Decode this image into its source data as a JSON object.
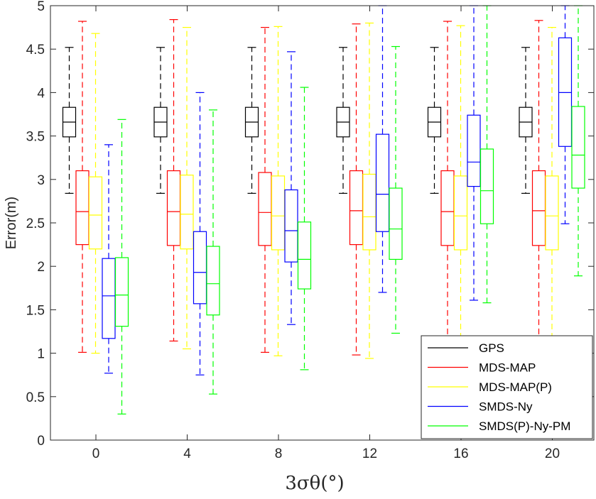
{
  "chart_data": {
    "type": "box",
    "xlabel": "3σθ(°)",
    "ylabel": "Error(m)",
    "ylim": [
      0,
      5
    ],
    "yticks": [
      0,
      0.5,
      1,
      1.5,
      2,
      2.5,
      3,
      3.5,
      4,
      4.5,
      5
    ],
    "ytick_labels": [
      "0",
      "0.5",
      "1",
      "1.5",
      "2",
      "2.5",
      "3",
      "3.5",
      "4",
      "4.5",
      "5"
    ],
    "categories": [
      "0",
      "4",
      "8",
      "12",
      "16",
      "20"
    ],
    "grid": false,
    "legend_position": "bottom-right",
    "series": [
      {
        "name": "GPS",
        "color": "#000000",
        "boxes": [
          {
            "whisker_low": 2.84,
            "q1": 3.49,
            "median": 3.66,
            "q3": 3.83,
            "whisker_high": 4.52
          },
          {
            "whisker_low": 2.84,
            "q1": 3.49,
            "median": 3.66,
            "q3": 3.83,
            "whisker_high": 4.52
          },
          {
            "whisker_low": 2.84,
            "q1": 3.49,
            "median": 3.66,
            "q3": 3.83,
            "whisker_high": 4.52
          },
          {
            "whisker_low": 2.84,
            "q1": 3.49,
            "median": 3.66,
            "q3": 3.83,
            "whisker_high": 4.52
          },
          {
            "whisker_low": 2.84,
            "q1": 3.49,
            "median": 3.66,
            "q3": 3.83,
            "whisker_high": 4.52
          },
          {
            "whisker_low": 2.84,
            "q1": 3.49,
            "median": 3.66,
            "q3": 3.83,
            "whisker_high": 4.52
          }
        ]
      },
      {
        "name": "MDS-MAP",
        "color": "#ff0000",
        "boxes": [
          {
            "whisker_low": 1.01,
            "q1": 2.25,
            "median": 2.63,
            "q3": 3.1,
            "whisker_high": 4.82
          },
          {
            "whisker_low": 1.14,
            "q1": 2.24,
            "median": 2.63,
            "q3": 3.1,
            "whisker_high": 4.84
          },
          {
            "whisker_low": 1.01,
            "q1": 2.24,
            "median": 2.62,
            "q3": 3.08,
            "whisker_high": 4.75
          },
          {
            "whisker_low": 0.98,
            "q1": 2.25,
            "median": 2.64,
            "q3": 3.1,
            "whisker_high": 4.79
          },
          {
            "whisker_low": 1.0,
            "q1": 2.24,
            "median": 2.63,
            "q3": 3.1,
            "whisker_high": 4.82
          },
          {
            "whisker_low": 1.0,
            "q1": 2.24,
            "median": 2.64,
            "q3": 3.1,
            "whisker_high": 4.83
          }
        ]
      },
      {
        "name": "MDS-MAP(P)",
        "color": "#ffff00",
        "boxes": [
          {
            "whisker_low": 1.0,
            "q1": 2.2,
            "median": 2.59,
            "q3": 3.03,
            "whisker_high": 4.68
          },
          {
            "whisker_low": 1.05,
            "q1": 2.2,
            "median": 2.6,
            "q3": 3.05,
            "whisker_high": 4.75
          },
          {
            "whisker_low": 0.97,
            "q1": 2.19,
            "median": 2.58,
            "q3": 3.04,
            "whisker_high": 4.76
          },
          {
            "whisker_low": 0.94,
            "q1": 2.19,
            "median": 2.57,
            "q3": 3.06,
            "whisker_high": 4.8
          },
          {
            "whisker_low": 1.0,
            "q1": 2.19,
            "median": 2.58,
            "q3": 3.04,
            "whisker_high": 4.77
          },
          {
            "whisker_low": 1.0,
            "q1": 2.19,
            "median": 2.58,
            "q3": 3.04,
            "whisker_high": 4.75
          }
        ]
      },
      {
        "name": "SMDS-Ny",
        "color": "#0000ff",
        "boxes": [
          {
            "whisker_low": 0.77,
            "q1": 1.17,
            "median": 1.66,
            "q3": 2.09,
            "whisker_high": 3.4
          },
          {
            "whisker_low": 0.75,
            "q1": 1.57,
            "median": 1.93,
            "q3": 2.4,
            "whisker_high": 4.0
          },
          {
            "whisker_low": 1.33,
            "q1": 2.05,
            "median": 2.41,
            "q3": 2.88,
            "whisker_high": 4.47
          },
          {
            "whisker_low": 1.7,
            "q1": 2.4,
            "median": 2.83,
            "q3": 3.52,
            "whisker_high": 5.0
          },
          {
            "whisker_low": 1.61,
            "q1": 2.92,
            "median": 3.2,
            "q3": 3.74,
            "whisker_high": 5.0
          },
          {
            "whisker_low": 2.49,
            "q1": 3.38,
            "median": 4.0,
            "q3": 4.63,
            "whisker_high": 5.0
          }
        ]
      },
      {
        "name": "SMDS(P)-Ny-PM",
        "color": "#00ff00",
        "boxes": [
          {
            "whisker_low": 0.3,
            "q1": 1.31,
            "median": 1.67,
            "q3": 2.1,
            "whisker_high": 3.69
          },
          {
            "whisker_low": 0.53,
            "q1": 1.44,
            "median": 1.8,
            "q3": 2.23,
            "whisker_high": 3.8
          },
          {
            "whisker_low": 0.81,
            "q1": 1.74,
            "median": 2.08,
            "q3": 2.51,
            "whisker_high": 4.06
          },
          {
            "whisker_low": 1.23,
            "q1": 2.08,
            "median": 2.43,
            "q3": 2.9,
            "whisker_high": 4.53
          },
          {
            "whisker_low": 1.58,
            "q1": 2.49,
            "median": 2.87,
            "q3": 3.35,
            "whisker_high": 5.0
          },
          {
            "whisker_low": 1.89,
            "q1": 2.9,
            "median": 3.28,
            "q3": 3.84,
            "whisker_high": 5.0
          }
        ]
      }
    ]
  }
}
